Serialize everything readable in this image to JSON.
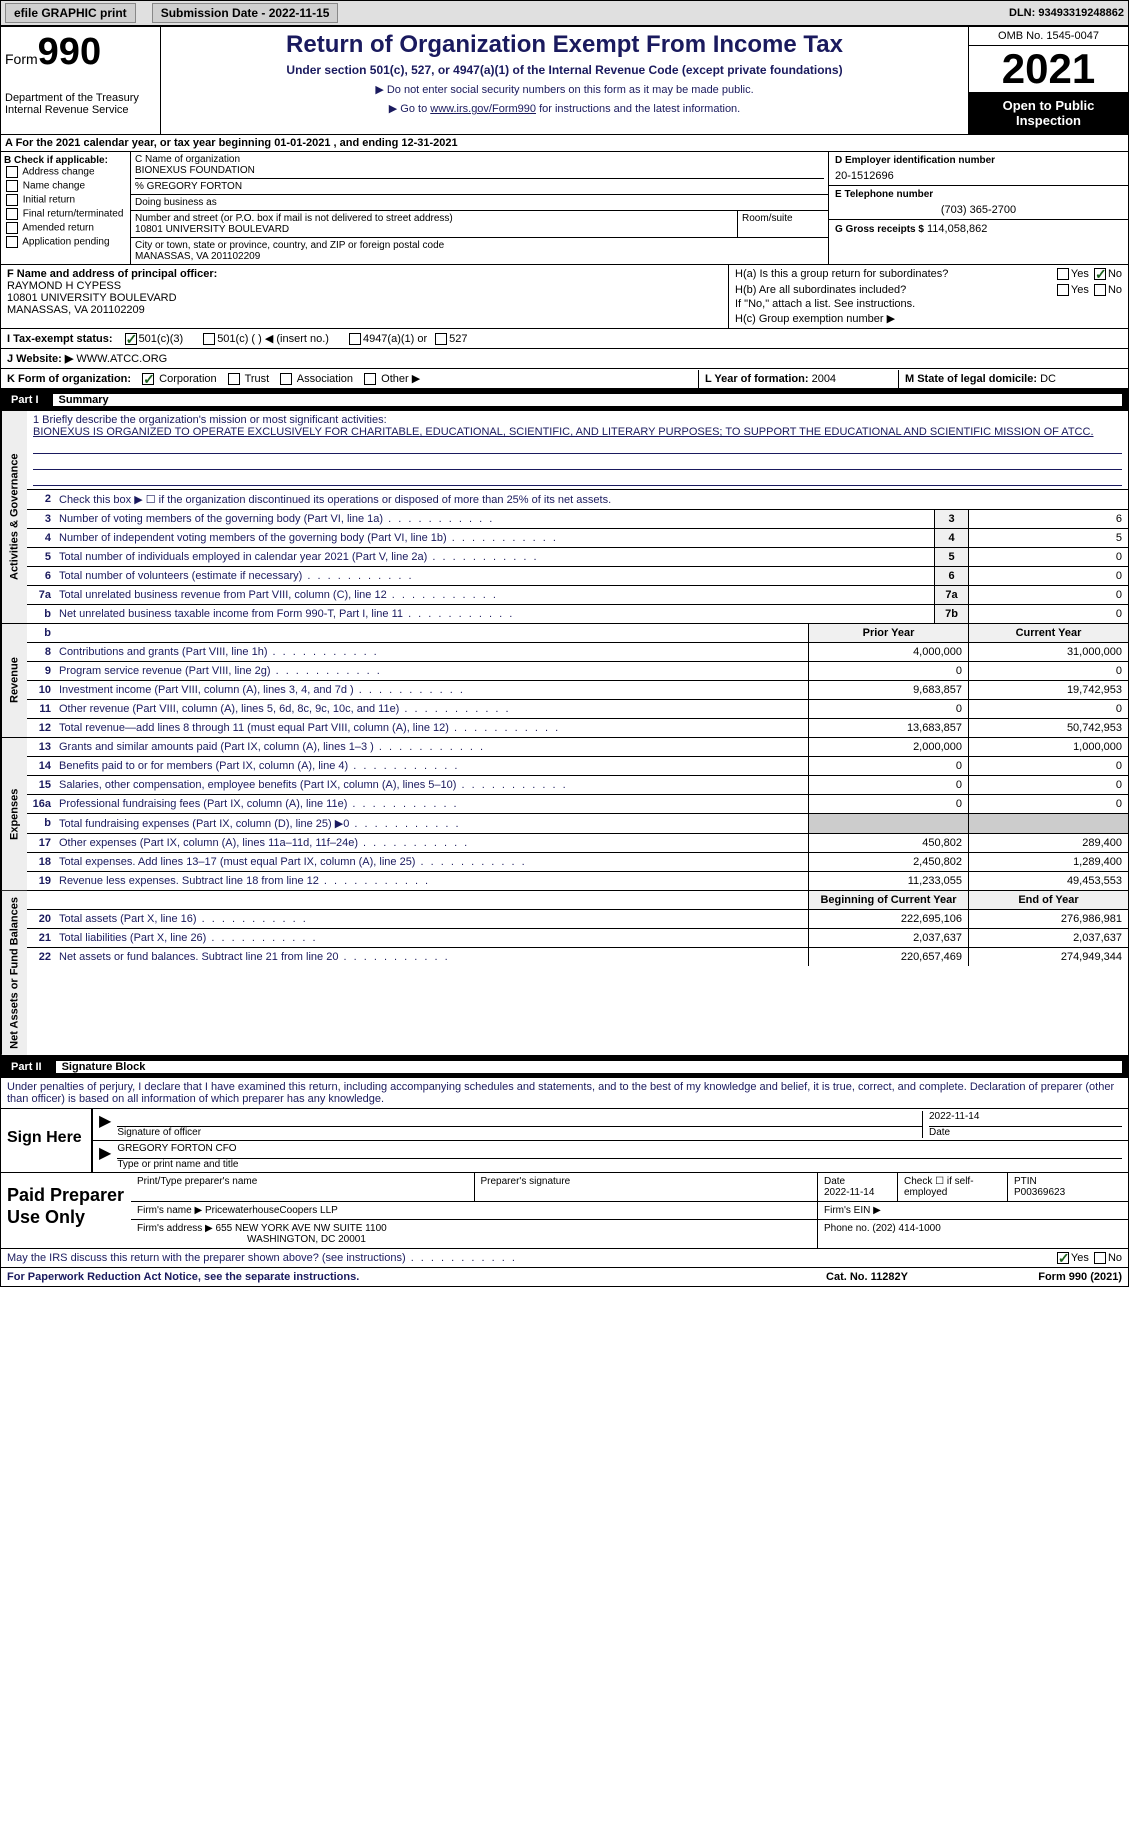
{
  "topbar": {
    "efile_label": "efile GRAPHIC print",
    "submission_label": "Submission Date - 2022-11-15",
    "dln_label": "DLN: 93493319248862"
  },
  "header": {
    "form_prefix": "Form",
    "form_no": "990",
    "title": "Return of Organization Exempt From Income Tax",
    "sub1": "Under section 501(c), 527, or 4947(a)(1) of the Internal Revenue Code (except private foundations)",
    "sub2a": "▶ Do not enter social security numbers on this form as it may be made public.",
    "sub2b_pre": "▶ Go to ",
    "sub2b_link": "www.irs.gov/Form990",
    "sub2b_post": " for instructions and the latest information.",
    "dept": "Department of the Treasury\nInternal Revenue Service",
    "omb": "OMB No. 1545-0047",
    "year": "2021",
    "open": "Open to Public Inspection"
  },
  "cal": "A For the 2021 calendar year, or tax year beginning 01-01-2021   , and ending 12-31-2021",
  "checkB": {
    "title": "B Check if applicable:",
    "items": [
      "Address change",
      "Name change",
      "Initial return",
      "Final return/terminated",
      "Amended return",
      "Application pending"
    ]
  },
  "colC": {
    "name_lbl": "C Name of organization",
    "name": "BIONEXUS FOUNDATION",
    "co": "% GREGORY FORTON",
    "dba_lbl": "Doing business as",
    "dba": "",
    "addr_lbl": "Number and street (or P.O. box if mail is not delivered to street address)",
    "addr": "10801 UNIVERSITY BOULEVARD",
    "room_lbl": "Room/suite",
    "city_lbl": "City or town, state or province, country, and ZIP or foreign postal code",
    "city": "MANASSAS, VA  201102209"
  },
  "colD": {
    "ein_lbl": "D Employer identification number",
    "ein": "20-1512696",
    "tel_lbl": "E Telephone number",
    "tel": "(703) 365-2700",
    "gross_lbl": "G Gross receipts $",
    "gross": "114,058,862"
  },
  "rowF": {
    "lbl": "F Name and address of principal officer:",
    "name": "RAYMOND H CYPESS",
    "addr1": "10801 UNIVERSITY BOULEVARD",
    "addr2": "MANASSAS, VA  201102209"
  },
  "rowH": {
    "ha": "H(a)  Is this a group return for subordinates?",
    "hb": "H(b)  Are all subordinates included?",
    "hb2": "If \"No,\" attach a list. See instructions.",
    "hc": "H(c)  Group exemption number ▶"
  },
  "rowI": {
    "lbl": "I   Tax-exempt status:",
    "o1": "501(c)(3)",
    "o2": "501(c) (  ) ◀ (insert no.)",
    "o3": "4947(a)(1) or",
    "o4": "527"
  },
  "rowJ": {
    "lbl": "J   Website: ▶",
    "val": "WWW.ATCC.ORG"
  },
  "rowK": {
    "lbl": "K Form of organization:",
    "o1": "Corporation",
    "o2": "Trust",
    "o3": "Association",
    "o4": "Other ▶"
  },
  "rowL": {
    "lbl": "L Year of formation:",
    "val": "2004"
  },
  "rowM": {
    "lbl": "M State of legal domicile:",
    "val": "DC"
  },
  "part1": {
    "no": "Part I",
    "title": "Summary"
  },
  "mission": {
    "lbl": "1   Briefly describe the organization's mission or most significant activities:",
    "text": "BIONEXUS IS ORGANIZED TO OPERATE EXCLUSIVELY FOR CHARITABLE, EDUCATIONAL, SCIENTIFIC, AND LITERARY PURPOSES; TO SUPPORT THE EDUCATIONAL AND SCIENTIFIC MISSION OF ATCC."
  },
  "s2": "Check this box ▶ ☐ if the organization discontinued its operations or disposed of more than 25% of its net assets.",
  "lines_a": [
    {
      "no": "3",
      "desc": "Number of voting members of the governing body (Part VI, line 1a)",
      "box": "3",
      "val": "6"
    },
    {
      "no": "4",
      "desc": "Number of independent voting members of the governing body (Part VI, line 1b)",
      "box": "4",
      "val": "5"
    },
    {
      "no": "5",
      "desc": "Total number of individuals employed in calendar year 2021 (Part V, line 2a)",
      "box": "5",
      "val": "0"
    },
    {
      "no": "6",
      "desc": "Total number of volunteers (estimate if necessary)",
      "box": "6",
      "val": "0"
    },
    {
      "no": "7a",
      "desc": "Total unrelated business revenue from Part VIII, column (C), line 12",
      "box": "7a",
      "val": "0"
    },
    {
      "no": "b",
      "desc": "Net unrelated business taxable income from Form 990-T, Part I, line 11",
      "box": "7b",
      "val": "0"
    }
  ],
  "colhdr": {
    "prior": "Prior Year",
    "current": "Current Year"
  },
  "revenue": [
    {
      "no": "8",
      "desc": "Contributions and grants (Part VIII, line 1h)",
      "p": "4,000,000",
      "c": "31,000,000"
    },
    {
      "no": "9",
      "desc": "Program service revenue (Part VIII, line 2g)",
      "p": "0",
      "c": "0"
    },
    {
      "no": "10",
      "desc": "Investment income (Part VIII, column (A), lines 3, 4, and 7d )",
      "p": "9,683,857",
      "c": "19,742,953"
    },
    {
      "no": "11",
      "desc": "Other revenue (Part VIII, column (A), lines 5, 6d, 8c, 9c, 10c, and 11e)",
      "p": "0",
      "c": "0"
    },
    {
      "no": "12",
      "desc": "Total revenue—add lines 8 through 11 (must equal Part VIII, column (A), line 12)",
      "p": "13,683,857",
      "c": "50,742,953"
    }
  ],
  "expenses": [
    {
      "no": "13",
      "desc": "Grants and similar amounts paid (Part IX, column (A), lines 1–3 )",
      "p": "2,000,000",
      "c": "1,000,000"
    },
    {
      "no": "14",
      "desc": "Benefits paid to or for members (Part IX, column (A), line 4)",
      "p": "0",
      "c": "0"
    },
    {
      "no": "15",
      "desc": "Salaries, other compensation, employee benefits (Part IX, column (A), lines 5–10)",
      "p": "0",
      "c": "0"
    },
    {
      "no": "16a",
      "desc": "Professional fundraising fees (Part IX, column (A), line 11e)",
      "p": "0",
      "c": "0"
    },
    {
      "no": "b",
      "desc": "Total fundraising expenses (Part IX, column (D), line 25) ▶0",
      "p": "",
      "c": "",
      "shade": true
    },
    {
      "no": "17",
      "desc": "Other expenses (Part IX, column (A), lines 11a–11d, 11f–24e)",
      "p": "450,802",
      "c": "289,400"
    },
    {
      "no": "18",
      "desc": "Total expenses. Add lines 13–17 (must equal Part IX, column (A), line 25)",
      "p": "2,450,802",
      "c": "1,289,400"
    },
    {
      "no": "19",
      "desc": "Revenue less expenses. Subtract line 18 from line 12",
      "p": "11,233,055",
      "c": "49,453,553"
    }
  ],
  "colhdr2": {
    "prior": "Beginning of Current Year",
    "current": "End of Year"
  },
  "netassets": [
    {
      "no": "20",
      "desc": "Total assets (Part X, line 16)",
      "p": "222,695,106",
      "c": "276,986,981"
    },
    {
      "no": "21",
      "desc": "Total liabilities (Part X, line 26)",
      "p": "2,037,637",
      "c": "2,037,637"
    },
    {
      "no": "22",
      "desc": "Net assets or fund balances. Subtract line 21 from line 20",
      "p": "220,657,469",
      "c": "274,949,344"
    }
  ],
  "vtabs": {
    "a": "Activities & Governance",
    "r": "Revenue",
    "e": "Expenses",
    "n": "Net Assets or Fund Balances"
  },
  "part2": {
    "no": "Part II",
    "title": "Signature Block"
  },
  "sigtext": "Under penalties of perjury, I declare that I have examined this return, including accompanying schedules and statements, and to the best of my knowledge and belief, it is true, correct, and complete. Declaration of preparer (other than officer) is based on all information of which preparer has any knowledge.",
  "sign": {
    "here": "Sign Here",
    "sig_lbl": "Signature of officer",
    "date_lbl": "Date",
    "date": "2022-11-14",
    "name": "GREGORY FORTON  CFO",
    "name_lbl": "Type or print name and title"
  },
  "prep": {
    "here": "Paid Preparer Use Only",
    "pname_lbl": "Print/Type preparer's name",
    "psig_lbl": "Preparer's signature",
    "pdate_lbl": "Date",
    "pdate": "2022-11-14",
    "pcheck_lbl": "Check ☐ if self-employed",
    "ptin_lbl": "PTIN",
    "ptin": "P00369623",
    "firm_lbl": "Firm's name    ▶",
    "firm": "PricewaterhouseCoopers LLP",
    "fein_lbl": "Firm's EIN ▶",
    "faddr_lbl": "Firm's address ▶",
    "faddr1": "655 NEW YORK AVE NW SUITE 1100",
    "faddr2": "WASHINGTON, DC  20001",
    "fphone_lbl": "Phone no.",
    "fphone": "(202) 414-1000"
  },
  "discuss": "May the IRS discuss this return with the preparer shown above? (see instructions)",
  "yes": "Yes",
  "no": "No",
  "footer": {
    "left": "For Paperwork Reduction Act Notice, see the separate instructions.",
    "mid": "Cat. No. 11282Y",
    "right": "Form 990 (2021)"
  }
}
